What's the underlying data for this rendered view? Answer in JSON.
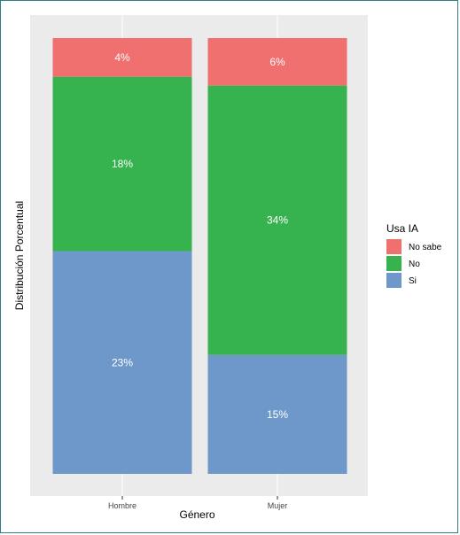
{
  "chart_data": {
    "type": "bar",
    "stacked": true,
    "normalized": true,
    "categories": [
      "Hombre",
      "Mujer"
    ],
    "series": [
      {
        "name": "No sabe",
        "values": [
          4,
          6
        ],
        "labels": [
          "4%",
          "6%"
        ]
      },
      {
        "name": "No",
        "values": [
          18,
          34
        ],
        "labels": [
          "18%",
          "34%"
        ]
      },
      {
        "name": "Si",
        "values": [
          23,
          15
        ],
        "labels": [
          "23%",
          "15%"
        ]
      }
    ],
    "xlabel": "Género",
    "ylabel": "Distribución Porcentual",
    "legend_title": "Usa IA",
    "legend_position": "right",
    "grid": true,
    "colors": {
      "No sabe": "#f07070",
      "No": "#36b24e",
      "Si": "#6e98ca",
      "panel_background": "#ebebeb",
      "grid_line": "#ffffff"
    }
  }
}
